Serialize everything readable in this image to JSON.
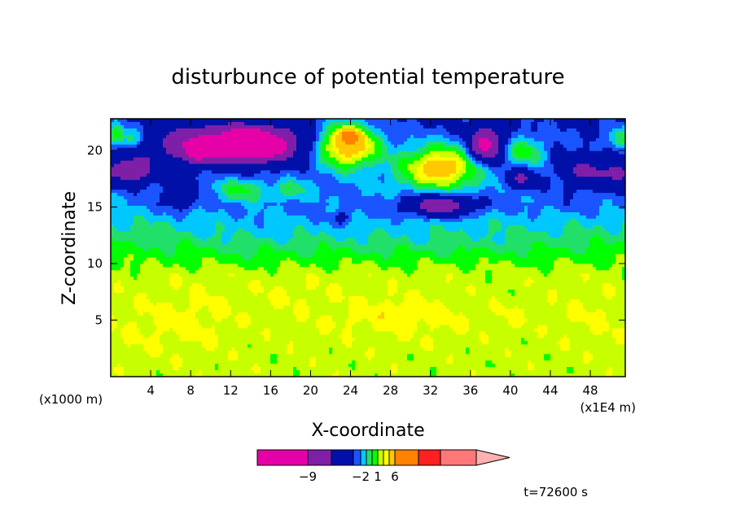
{
  "chart_data": {
    "type": "heatmap",
    "title": "disturbunce of potential temperature",
    "xlabel": "X-coordinate",
    "ylabel": "Z-coordinate",
    "x_unit_left": "(x1000 m)",
    "x_unit_right": "(x1E4 m)",
    "xlim": [
      0,
      51.5
    ],
    "ylim": [
      0,
      22.8
    ],
    "xticks": [
      4,
      8,
      12,
      16,
      20,
      24,
      28,
      32,
      36,
      40,
      44,
      48
    ],
    "yticks": [
      5,
      10,
      15,
      20
    ],
    "time_label": "t=72600 s",
    "colorbar": {
      "labels": [
        {
          "value": -9,
          "text": "−9"
        },
        {
          "value": -2,
          "text": "−2"
        },
        {
          "value": 1,
          "text": "1"
        },
        {
          "value": 6,
          "text": "6"
        }
      ],
      "levels": [
        -12,
        -9,
        -6,
        -3,
        -2,
        -1,
        0,
        1,
        2,
        3,
        6,
        9,
        12
      ],
      "colors": [
        "#e600a8",
        "#7f1fa8",
        "#0010a8",
        "#1a55ff",
        "#00c8ff",
        "#21e06a",
        "#00ff00",
        "#c8ff00",
        "#ffff00",
        "#ffc800",
        "#ff8200",
        "#ff2020",
        "#ff7878"
      ],
      "extend_color": "#ffb0b0"
    },
    "blobs": [
      {
        "x": 4,
        "y": 4.5,
        "rx": 4.5,
        "ry": 2.5,
        "v": 0.6
      },
      {
        "x": 9,
        "y": 5.5,
        "rx": 4,
        "ry": 3,
        "v": 0.6
      },
      {
        "x": 18,
        "y": 7.5,
        "rx": 3.5,
        "ry": 1.4,
        "v": 0.5
      },
      {
        "x": 27,
        "y": 5.5,
        "rx": 8,
        "ry": 2.2,
        "v": 0.6
      },
      {
        "x": 32,
        "y": 4.8,
        "rx": 4,
        "ry": 1.4,
        "v": 0.4
      },
      {
        "x": 29,
        "y": 5.7,
        "rx": 2.5,
        "ry": 1.0,
        "v": 0.7
      },
      {
        "x": 23.5,
        "y": 5.0,
        "rx": 1.5,
        "ry": 0.7,
        "v": 0.4
      },
      {
        "x": 40,
        "y": 5.2,
        "rx": 1.6,
        "ry": 1.2,
        "v": 0.6
      },
      {
        "x": 48,
        "y": 5.2,
        "rx": 4,
        "ry": 2.5,
        "v": 0.6
      },
      {
        "x": 14,
        "y": 12.5,
        "rx": 7,
        "ry": 2.2,
        "v": -0.6
      },
      {
        "x": 34,
        "y": 12.0,
        "rx": 10,
        "ry": 1.3,
        "v": -0.6
      },
      {
        "x": 24,
        "y": 14.0,
        "rx": 8,
        "ry": 2.5,
        "v": -0.5
      },
      {
        "x": 45,
        "y": 15.5,
        "rx": 7,
        "ry": 2,
        "v": -0.6
      },
      {
        "x": 8,
        "y": 16.0,
        "rx": 7,
        "ry": 2,
        "v": -0.5
      },
      {
        "x": 10,
        "y": 20.5,
        "rx": 6,
        "ry": 1.6,
        "v": -7
      },
      {
        "x": 15,
        "y": 20.5,
        "rx": 4,
        "ry": 1.6,
        "v": -7
      },
      {
        "x": 14.5,
        "y": 20.5,
        "rx": 1.5,
        "ry": 0.9,
        "v": -4
      },
      {
        "x": 8.5,
        "y": 19.5,
        "rx": 1.2,
        "ry": 0.8,
        "v": -3
      },
      {
        "x": 2,
        "y": 18.2,
        "rx": 2.5,
        "ry": 1.2,
        "v": -6
      },
      {
        "x": 23.8,
        "y": 20.5,
        "rx": 2.8,
        "ry": 1.8,
        "v": 8
      },
      {
        "x": 23.8,
        "y": 21.3,
        "rx": 1.0,
        "ry": 0.6,
        "v": 5
      },
      {
        "x": 33,
        "y": 18.5,
        "rx": 4,
        "ry": 2,
        "v": 6
      },
      {
        "x": 33,
        "y": 18.5,
        "rx": 1.2,
        "ry": 0.6,
        "v": 2
      },
      {
        "x": 33,
        "y": 15.2,
        "rx": 3.5,
        "ry": 1.0,
        "v": -6
      },
      {
        "x": 37.5,
        "y": 20.5,
        "rx": 1.6,
        "ry": 1.6,
        "v": -8
      },
      {
        "x": 41.5,
        "y": 20.0,
        "rx": 1.8,
        "ry": 1.3,
        "v": 3
      },
      {
        "x": 41,
        "y": 17.5,
        "rx": 1.5,
        "ry": 0.9,
        "v": -4
      },
      {
        "x": 47.5,
        "y": 18.2,
        "rx": 2.5,
        "ry": 1.4,
        "v": -4
      },
      {
        "x": 51,
        "y": 18.0,
        "rx": 1.5,
        "ry": 1.4,
        "v": -4
      },
      {
        "x": 51,
        "y": 21.0,
        "rx": 1.2,
        "ry": 1.0,
        "v": 3
      },
      {
        "x": 13,
        "y": 16.5,
        "rx": 2.5,
        "ry": 1.0,
        "v": 2.5
      },
      {
        "x": 18,
        "y": 16.5,
        "rx": 1.5,
        "ry": 0.8,
        "v": 2
      },
      {
        "x": 2,
        "y": 21,
        "rx": 1.5,
        "ry": 1.0,
        "v": 3
      },
      {
        "x": 7,
        "y": 16.0,
        "rx": 1.5,
        "ry": 1.1,
        "v": -3
      },
      {
        "x": 23,
        "y": 14,
        "rx": 1.0,
        "ry": 0.6,
        "v": -2
      },
      {
        "x": 0.5,
        "y": 21.5,
        "rx": 0.8,
        "ry": 1.0,
        "v": 3
      }
    ]
  }
}
